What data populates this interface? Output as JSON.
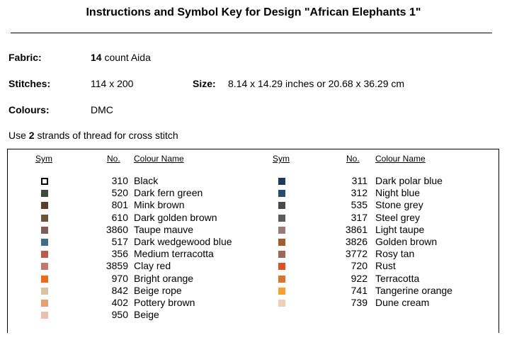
{
  "header": {
    "title": "Instructions and Symbol Key for Design \"African Elephants 1\""
  },
  "fields": {
    "fabric": {
      "label": "Fabric:",
      "count": "14",
      "value": " count Aida"
    },
    "stitches": {
      "label": "Stitches:",
      "value": "114 x 200"
    },
    "size": {
      "label": "Size:",
      "value": "8.14 x 14.29 inches or 20.68 x 36.29 cm"
    },
    "colours": {
      "label": "Colours:",
      "value": "DMC"
    }
  },
  "instruction": {
    "before": "Use ",
    "strands": "2",
    "after": " strands of thread for cross stitch"
  },
  "table": {
    "headers": [
      "Sym",
      "No.",
      "Colour Name"
    ],
    "left": [
      {
        "no": "310",
        "name": "Black",
        "color": "#ffffff"
      },
      {
        "no": "520",
        "name": "Dark fern green",
        "color": "#3d4a3b"
      },
      {
        "no": "801",
        "name": "Mink brown",
        "color": "#5c3d2c"
      },
      {
        "no": "610",
        "name": "Dark golden brown",
        "color": "#6b5436"
      },
      {
        "no": "3860",
        "name": "Taupe mauve",
        "color": "#7e5c5c"
      },
      {
        "no": "517",
        "name": "Dark wedgewood blue",
        "color": "#3b6e8f"
      },
      {
        "no": "356",
        "name": "Medium terracotta",
        "color": "#b85b4b"
      },
      {
        "no": "3859",
        "name": "Clay red",
        "color": "#c27b6b"
      },
      {
        "no": "970",
        "name": "Bright orange",
        "color": "#f06a1a"
      },
      {
        "no": "842",
        "name": "Beige rope",
        "color": "#d9c1a1"
      },
      {
        "no": "402",
        "name": "Pottery brown",
        "color": "#e8a070"
      },
      {
        "no": "950",
        "name": "Beige",
        "color": "#e8c1b1"
      }
    ],
    "right": [
      {
        "no": "311",
        "name": "Dark polar blue",
        "color": "#1e3a5f"
      },
      {
        "no": "312",
        "name": "Night blue",
        "color": "#2a4a70"
      },
      {
        "no": "535",
        "name": "Stone grey",
        "color": "#4a4a48"
      },
      {
        "no": "317",
        "name": "Steel grey",
        "color": "#5a5a60"
      },
      {
        "no": "3861",
        "name": "Light taupe",
        "color": "#9a7a78"
      },
      {
        "no": "3826",
        "name": "Golden brown",
        "color": "#a85a28"
      },
      {
        "no": "3772",
        "name": "Rosy tan",
        "color": "#a06858"
      },
      {
        "no": "720",
        "name": "Rust",
        "color": "#e05020"
      },
      {
        "no": "922",
        "name": "Terracotta",
        "color": "#e07030"
      },
      {
        "no": "741",
        "name": "Tangerine orange",
        "color": "#f8a030"
      },
      {
        "no": "739",
        "name": "Dune cream",
        "color": "#f0d0b0"
      }
    ]
  }
}
